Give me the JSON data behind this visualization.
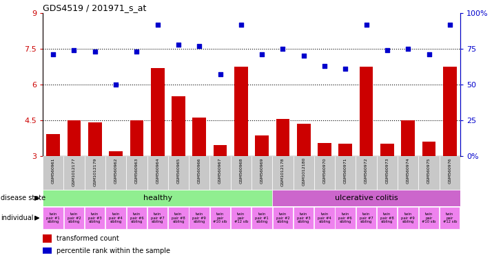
{
  "title": "GDS4519 / 201971_s_at",
  "samples": [
    "GSM560961",
    "GSM1012177",
    "GSM1012179",
    "GSM560962",
    "GSM560963",
    "GSM560964",
    "GSM560965",
    "GSM560966",
    "GSM560967",
    "GSM560968",
    "GSM560969",
    "GSM1012178",
    "GSM1012180",
    "GSM560970",
    "GSM560971",
    "GSM560972",
    "GSM560973",
    "GSM560974",
    "GSM560975",
    "GSM560976"
  ],
  "bar_values": [
    3.9,
    4.5,
    4.4,
    3.2,
    4.5,
    6.7,
    5.5,
    4.6,
    3.45,
    6.75,
    3.85,
    4.55,
    4.35,
    3.55,
    3.5,
    6.75,
    3.5,
    4.5,
    3.6,
    6.75
  ],
  "dot_values": [
    71,
    74,
    73,
    50,
    73,
    92,
    78,
    77,
    57,
    92,
    71,
    75,
    70,
    63,
    61,
    92,
    74,
    75,
    71,
    92
  ],
  "ylim_left": [
    3.0,
    9.0
  ],
  "yticks_left": [
    3.0,
    4.5,
    6.0,
    7.5,
    9.0
  ],
  "ytick_labels_left": [
    "3",
    "4.5",
    "6",
    "7.5",
    "9"
  ],
  "ylim_right": [
    0,
    100
  ],
  "yticks_right": [
    0,
    25,
    50,
    75,
    100
  ],
  "ytick_labels_right": [
    "0%",
    "25",
    "50",
    "75",
    "100%"
  ],
  "bar_color": "#cc0000",
  "dot_color": "#0000cc",
  "healthy_color": "#90ee90",
  "uc_color": "#cc66cc",
  "individual_color": "#ee82ee",
  "label_bg_color": "#c8c8c8",
  "healthy_split": 11,
  "n_samples": 20,
  "legend_bar_label": "transformed count",
  "legend_dot_label": "percentile rank within the sample",
  "disease_state_label": "disease state",
  "individual_label": "individual",
  "individual_line1": [
    "twin",
    "twin",
    "twin",
    "twin",
    "twin",
    "twin",
    "twin",
    "twin",
    "twin",
    "twin",
    "twin",
    "twin",
    "twin",
    "twin",
    "twin",
    "twin",
    "twin",
    "twin",
    "twin",
    "twin"
  ],
  "individual_line2": [
    "pair #1",
    "pair #2",
    "pair #3",
    "pair #4",
    "pair #6",
    "pair #7",
    "pair #8",
    "pair #9",
    "pair",
    "pair",
    "pair #1",
    "pair #2",
    "pair #3",
    "pair #4",
    "pair #6",
    "pair #7",
    "pair #8",
    "pair #9",
    "pair",
    "pair"
  ],
  "individual_line3": [
    "sibling",
    "sibling",
    "sibling",
    "sibling",
    "sibling",
    "sibling",
    "sibling",
    "sibling",
    "#10 sib",
    "#12 sib",
    "sibling",
    "sibling",
    "sibling",
    "sibling",
    "sibling",
    "sibling",
    "sibling",
    "sibling",
    "#10 sib",
    "#12 sib"
  ]
}
